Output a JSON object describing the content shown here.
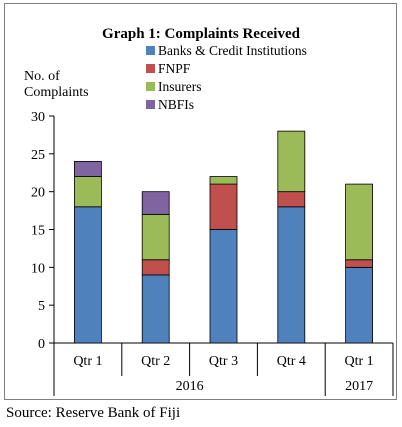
{
  "chart_data": {
    "type": "bar",
    "stacked": true,
    "title": "Graph 1: Complaints Received",
    "ylabel_lines": [
      "No. of",
      "Complaints"
    ],
    "xlabel": "",
    "categories": [
      "Qtr 1",
      "Qtr 2",
      "Qtr 3",
      "Qtr 4",
      "Qtr 1"
    ],
    "year_groups": [
      {
        "label": "2016",
        "categories": [
          "Qtr 1",
          "Qtr 2",
          "Qtr 3",
          "Qtr 4"
        ]
      },
      {
        "label": "2017",
        "categories": [
          "Qtr 1"
        ]
      }
    ],
    "series": [
      {
        "name": "Banks & Credit Institutions",
        "color": "#4f81bd",
        "values": [
          18,
          9,
          15,
          18,
          10
        ]
      },
      {
        "name": "FNPF",
        "color": "#c0504d",
        "values": [
          0,
          2,
          6,
          2,
          1
        ]
      },
      {
        "name": "Insurers",
        "color": "#9bbb59",
        "values": [
          4,
          6,
          1,
          8,
          10
        ]
      },
      {
        "name": "NBFIs",
        "color": "#8064a2",
        "values": [
          2,
          3,
          0,
          0,
          0
        ]
      }
    ],
    "ylim": [
      0,
      30
    ],
    "yticks": [
      0,
      5,
      10,
      15,
      20,
      25,
      30
    ],
    "grid": false,
    "legend_position": "top-right"
  },
  "source": "Source: Reserve Bank of Fiji"
}
